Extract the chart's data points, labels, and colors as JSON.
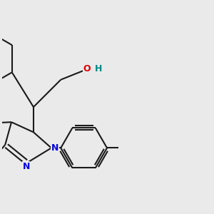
{
  "bg_color": "#eaeaea",
  "bond_color": "#1a1a1a",
  "N_color": "#0000dd",
  "O_color": "#dd0000",
  "H_color": "#008888",
  "lw": 1.5,
  "fig_size": [
    3.0,
    3.0
  ],
  "dpi": 100,
  "xlim": [
    -1.5,
    8.5
  ],
  "ylim": [
    -4.5,
    4.5
  ],
  "font_size": 9
}
